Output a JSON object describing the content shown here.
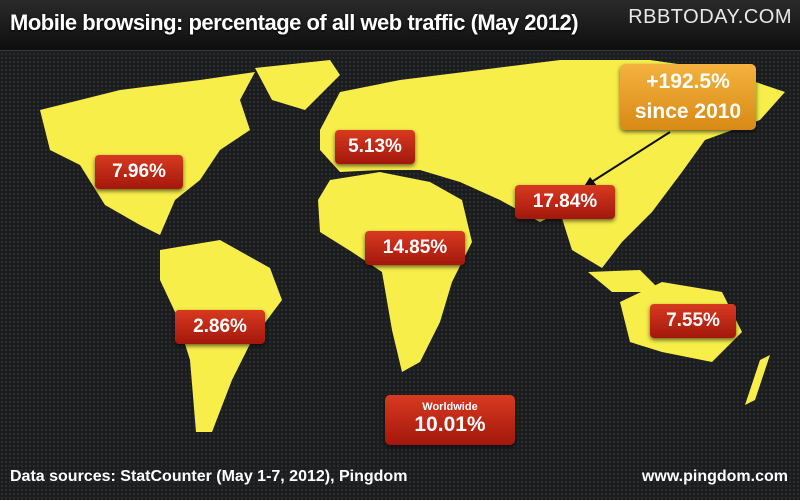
{
  "header": {
    "title": "Mobile browsing: percentage of all web traffic (May 2012)",
    "watermark": "RBBTODAY.COM"
  },
  "regions": [
    {
      "name": "North America",
      "value": "7.96%"
    },
    {
      "name": "Europe",
      "value": "5.13%"
    },
    {
      "name": "Asia",
      "value": "17.84%"
    },
    {
      "name": "Africa",
      "value": "14.85%"
    },
    {
      "name": "South America",
      "value": "2.86%"
    },
    {
      "name": "Oceania",
      "value": "7.55%"
    }
  ],
  "callout": {
    "line1": "+192.5%",
    "line2": "since 2010"
  },
  "worldwide": {
    "label": "Worldwide",
    "value": "10.01%"
  },
  "footer": {
    "sources": "Data sources: StatCounter (May 1-7, 2012), Pingdom",
    "url": "www.pingdom.com"
  },
  "colors": {
    "land": "#f7ee4a",
    "label": "#c0281a",
    "callout": "#e89d28"
  }
}
